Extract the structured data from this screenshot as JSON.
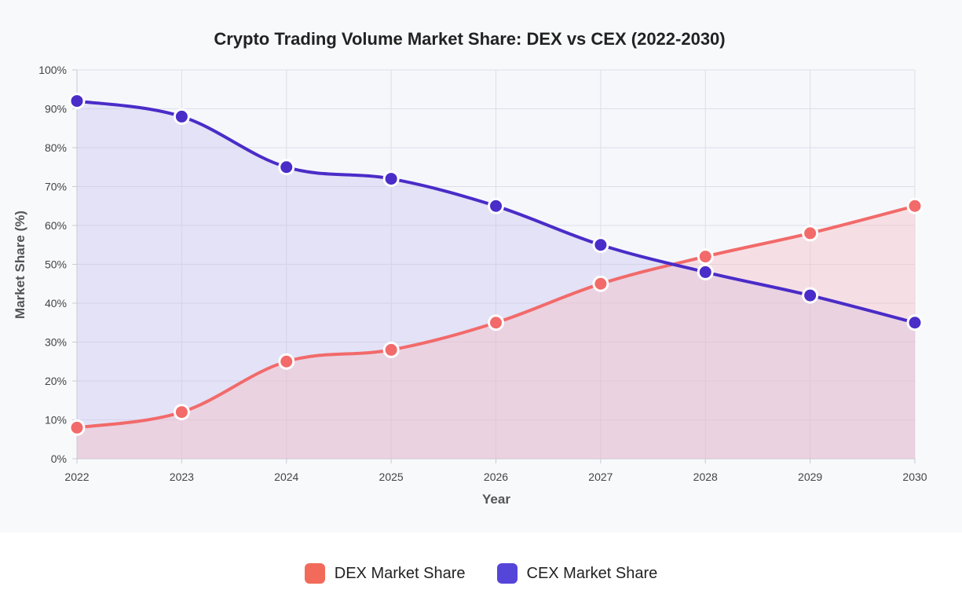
{
  "chart_data": {
    "type": "area",
    "title": "Crypto Trading Volume Market Share: DEX vs CEX (2022-2030)",
    "xlabel": "Year",
    "ylabel": "Market Share (%)",
    "categories": [
      "2022",
      "2023",
      "2024",
      "2025",
      "2026",
      "2027",
      "2028",
      "2029",
      "2030"
    ],
    "ylim": [
      0,
      100
    ],
    "yticks": [
      "0%",
      "10%",
      "20%",
      "30%",
      "40%",
      "50%",
      "60%",
      "70%",
      "80%",
      "90%",
      "100%"
    ],
    "grid": true,
    "legend_position": "bottom",
    "series": [
      {
        "name": "DEX Market Share",
        "values": [
          8,
          12,
          25,
          28,
          35,
          45,
          52,
          58,
          65
        ],
        "color": "#f26a6a",
        "fill": "#f6b8c0"
      },
      {
        "name": "CEX Market Share",
        "values": [
          92,
          88,
          75,
          72,
          65,
          55,
          48,
          42,
          35
        ],
        "color": "#4a2cc8",
        "fill": "#c6c0f0"
      }
    ]
  },
  "legend": {
    "items": [
      {
        "label": "DEX Market Share",
        "color": "#f26a5a"
      },
      {
        "label": "CEX Market Share",
        "color": "#5545d8"
      }
    ]
  }
}
